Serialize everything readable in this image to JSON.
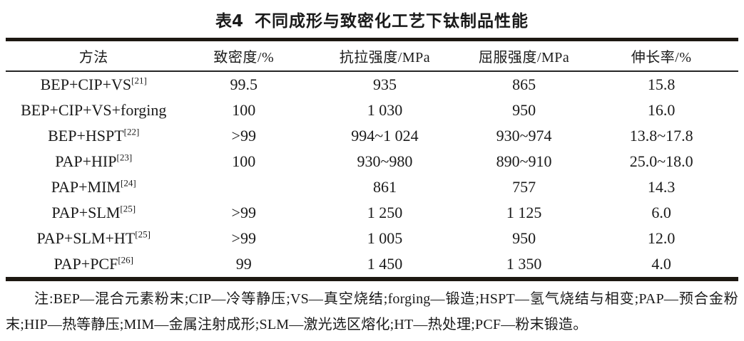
{
  "title": {
    "label": "表4",
    "text": "不同成形与致密化工艺下钛制品性能"
  },
  "table": {
    "headers": [
      "方法",
      "致密度/%",
      "抗拉强度/MPa",
      "屈服强度/MPa",
      "伸长率/%"
    ],
    "rows": [
      {
        "method": "BEP+CIP+VS",
        "ref": "[21]",
        "density": "99.5",
        "tensile": "935",
        "yield": "865",
        "elongation": "15.8"
      },
      {
        "method": "BEP+CIP+VS+forging",
        "ref": "",
        "density": "100",
        "tensile": "1 030",
        "yield": "950",
        "elongation": "16.0"
      },
      {
        "method": "BEP+HSPT",
        "ref": "[22]",
        "density": ">99",
        "tensile": "994~1 024",
        "yield": "930~974",
        "elongation": "13.8~17.8"
      },
      {
        "method": "PAP+HIP",
        "ref": "[23]",
        "density": "100",
        "tensile": "930~980",
        "yield": "890~910",
        "elongation": "25.0~18.0"
      },
      {
        "method": "PAP+MIM",
        "ref": "[24]",
        "density": "",
        "tensile": "861",
        "yield": "757",
        "elongation": "14.3"
      },
      {
        "method": "PAP+SLM",
        "ref": "[25]",
        "density": ">99",
        "tensile": "1 250",
        "yield": "1 125",
        "elongation": "6.0"
      },
      {
        "method": "PAP+SLM+HT",
        "ref": "[25]",
        "density": ">99",
        "tensile": "1 005",
        "yield": "950",
        "elongation": "12.0"
      },
      {
        "method": "PAP+PCF",
        "ref": "[26]",
        "density": "99",
        "tensile": "1 450",
        "yield": "1 350",
        "elongation": "4.0"
      }
    ]
  },
  "note": {
    "text": "注:BEP—混合元素粉末;CIP—冷等静压;VS—真空烧结;forging—锻造;HSPT—氢气烧结与相变;PAP—预合金粉末;HIP—热等静压;MIM—金属注射成形;SLM—激光选区熔化;HT—热处理;PCF—粉末锻造。"
  },
  "colors": {
    "text": "#1a1a1a",
    "rule_thick": "#1d1812",
    "rule_thin": "#262626",
    "background": "#ffffff"
  }
}
